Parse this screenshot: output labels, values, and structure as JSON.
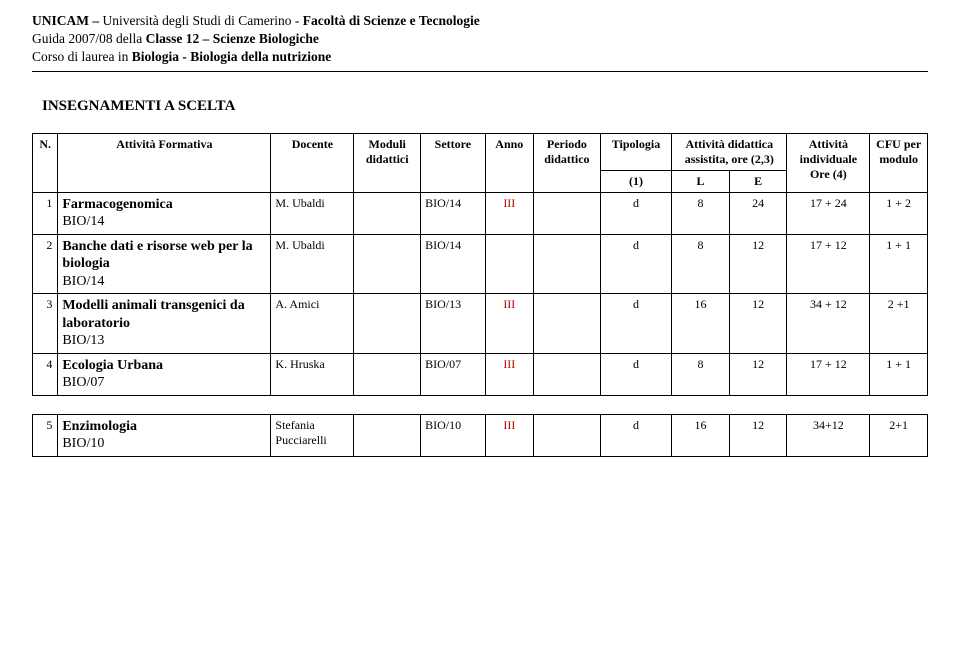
{
  "header": {
    "line1_prefix": "UNICAM – ",
    "line1_uni": "Università degli Studi di Camerino",
    "line1_sep": " - ",
    "line1_fac": "Facoltà di Scienze e Tecnologie",
    "line2_a": "Guida 2007/08 della ",
    "line2_b": "Classe 12 – Scienze Biologiche",
    "line3_a": "Corso di laurea in ",
    "line3_b": "Biologia - Biologia della nutrizione"
  },
  "section_title": "INSEGNAMENTI A SCELTA",
  "columns": {
    "n": "N.",
    "attivita": "Attività Formativa",
    "docente": "Docente",
    "moduli": "Moduli didattici",
    "settore": "Settore",
    "anno": "Anno",
    "periodo": "Periodo didattico",
    "tipologia": "Tipologia",
    "tipologia_sub": "(1)",
    "att_did": "Attività didattica assistita, ore (2,3)",
    "att_did_l": "L",
    "att_did_e": "E",
    "individuale": "Attività individuale Ore (4)",
    "cfu": "CFU per modulo"
  },
  "rows_main": [
    {
      "n": "1",
      "name": "Farmacogenomica",
      "code": "BIO/14",
      "docente": "M. Ubaldi",
      "settore": "BIO/14",
      "anno": "III",
      "periodo": "",
      "tipologia": "d",
      "l": "8",
      "e": "24",
      "indiv": "17 + 24",
      "cfu": "1 + 2"
    },
    {
      "n": "2",
      "name": "Banche dati e risorse web per la biologia",
      "code": "BIO/14",
      "docente": "M. Ubaldi",
      "settore": "BIO/14",
      "anno": "",
      "periodo": "",
      "tipologia": "d",
      "l": "8",
      "e": "12",
      "indiv": "17 + 12",
      "cfu": "1 + 1"
    },
    {
      "n": "3",
      "name": "Modelli animali transgenici da laboratorio",
      "code": "BIO/13",
      "docente": "A. Amici",
      "settore": "BIO/13",
      "anno": "III",
      "periodo": "",
      "tipologia": "d",
      "l": "16",
      "e": "12",
      "indiv": "34 + 12",
      "cfu": "2 +1"
    },
    {
      "n": "4",
      "name": "Ecologia Urbana",
      "code": "BIO/07",
      "docente": "K. Hruska",
      "settore": "BIO/07",
      "anno": "III",
      "periodo": "",
      "tipologia": "d",
      "l": "8",
      "e": "12",
      "indiv": "17 + 12",
      "cfu": "1 + 1"
    }
  ],
  "rows_second": [
    {
      "n": "5",
      "name": "Enzimologia",
      "code": "BIO/10",
      "docente_a": "Stefania",
      "docente_b": "Pucciarelli",
      "settore": "BIO/10",
      "anno": "III",
      "periodo": "",
      "tipologia": "d",
      "l": "16",
      "e": "12",
      "indiv": "34+12",
      "cfu": "2+1"
    }
  ]
}
